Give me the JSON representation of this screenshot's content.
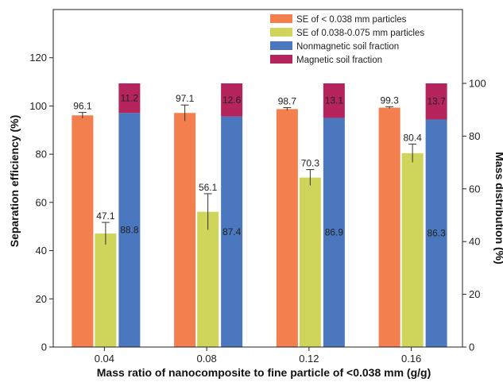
{
  "chart_data": {
    "type": "bar",
    "title": "",
    "xlabel": "Mass ratio of nanocomposite to fine particle of <0.038 mm (g/g)",
    "ylabel_left": "Separation efficiency (%)",
    "ylabel_right": "Mass distribution (%)",
    "categories": [
      "0.04",
      "0.08",
      "0.12",
      "0.16"
    ],
    "ylim_left": [
      0,
      140
    ],
    "yticks_left": [
      "0",
      "20",
      "40",
      "60",
      "80",
      "100",
      "120"
    ],
    "ylim_right": [
      0,
      128
    ],
    "yticks_right": [
      "0",
      "20",
      "40",
      "60",
      "80",
      "100"
    ],
    "grid": false,
    "legend_position": "top-right",
    "series": [
      {
        "name": "SE of < 0.038 mm particles",
        "axis": "left",
        "color": "#f47f4e",
        "values": [
          96.1,
          97.1,
          98.7,
          99.3
        ],
        "labels": [
          "96.1",
          "97.1",
          "98.7",
          "99.3"
        ],
        "errors": [
          1.2,
          3.3,
          0.6,
          0.4
        ]
      },
      {
        "name": "SE of 0.038-0.075 mm particles",
        "axis": "left",
        "color": "#cfd45a",
        "values": [
          47.1,
          56.1,
          70.3,
          80.4
        ],
        "labels": [
          "47.1",
          "56.1",
          "70.3",
          "80.4"
        ],
        "errors": [
          4.6,
          7.5,
          3.3,
          3.8
        ]
      },
      {
        "name": "Nonmagnetic soil fraction",
        "axis": "right",
        "stack": "mass",
        "color": "#4a77be",
        "values": [
          88.8,
          87.4,
          86.9,
          86.3
        ],
        "labels": [
          "88.8",
          "87.4",
          "86.9",
          "86.3"
        ]
      },
      {
        "name": "Magnetic soil fraction",
        "axis": "right",
        "stack": "mass",
        "color": "#b5245d",
        "values": [
          11.2,
          12.6,
          13.1,
          13.7
        ],
        "labels": [
          "11.2",
          "12.6",
          "13.1",
          "13.7"
        ]
      }
    ]
  }
}
